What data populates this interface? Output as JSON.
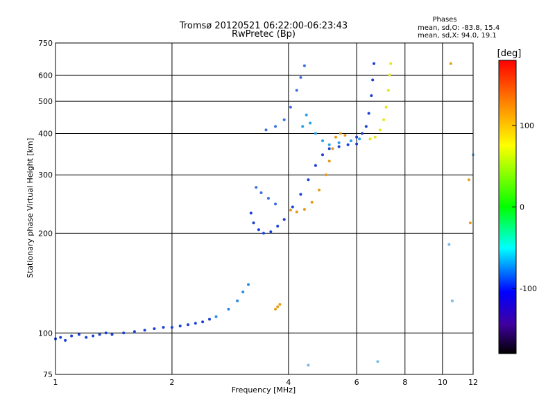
{
  "chart_data": {
    "type": "scatter",
    "title": "Tromsø 20120521 06:22:00-06:23:43",
    "subtitle": "RwPretec (Bp)",
    "xlabel": "Frequency [MHz]",
    "ylabel": "Stationary phase Virtual Height [km]",
    "x_scale": "log",
    "y_scale": "log",
    "xlim": [
      1,
      12
    ],
    "ylim": [
      75,
      750
    ],
    "x_ticks": [
      1,
      2,
      4,
      6,
      8,
      10,
      12
    ],
    "y_ticks": [
      75,
      100,
      200,
      300,
      400,
      500,
      600,
      750
    ],
    "grid": true,
    "phase_info": {
      "title": "Phases",
      "line1": "mean, sd,O: -83.8, 15.4",
      "line2": "mean, sd,X:  94.0, 19.1"
    },
    "colorbar": {
      "label": "[deg]",
      "range": [
        -180,
        180
      ],
      "ticks": [
        100,
        0,
        -100
      ],
      "colors": [
        "#ff0000",
        "#ff8000",
        "#ffff00",
        "#00ff00",
        "#00ffff",
        "#0000ff",
        "#4000a0",
        "#000000"
      ]
    },
    "series": [
      {
        "color": "#1a3fd6",
        "points": [
          [
            1.0,
            96
          ],
          [
            1.03,
            97
          ],
          [
            1.06,
            95
          ],
          [
            1.1,
            98
          ],
          [
            1.15,
            99
          ],
          [
            1.2,
            97
          ],
          [
            1.25,
            98
          ],
          [
            1.3,
            99
          ],
          [
            1.35,
            100
          ],
          [
            1.4,
            99
          ],
          [
            1.5,
            100
          ],
          [
            1.6,
            101
          ],
          [
            1.7,
            102
          ],
          [
            1.8,
            103
          ],
          [
            1.9,
            104
          ],
          [
            2.0,
            104
          ],
          [
            2.1,
            105
          ],
          [
            2.2,
            106
          ],
          [
            2.3,
            107
          ],
          [
            2.4,
            108
          ],
          [
            2.5,
            110
          ]
        ]
      },
      {
        "color": "#2a8ae6",
        "points": [
          [
            2.6,
            112
          ],
          [
            2.8,
            118
          ],
          [
            2.95,
            125
          ],
          [
            3.05,
            133
          ],
          [
            3.15,
            140
          ]
        ]
      },
      {
        "color": "#1a3fd6",
        "points": [
          [
            3.2,
            230
          ],
          [
            3.25,
            215
          ],
          [
            3.35,
            205
          ],
          [
            3.45,
            200
          ],
          [
            3.6,
            202
          ],
          [
            3.75,
            210
          ],
          [
            3.9,
            220
          ],
          [
            4.1,
            240
          ],
          [
            4.3,
            262
          ],
          [
            4.5,
            290
          ],
          [
            4.7,
            320
          ],
          [
            4.9,
            345
          ],
          [
            5.1,
            360
          ],
          [
            5.4,
            365
          ],
          [
            5.7,
            370
          ],
          [
            6.0,
            372
          ]
        ]
      },
      {
        "color": "#3d6fe0",
        "points": [
          [
            3.3,
            275
          ],
          [
            3.4,
            265
          ],
          [
            3.55,
            255
          ],
          [
            3.7,
            245
          ],
          [
            3.5,
            410
          ],
          [
            3.7,
            420
          ],
          [
            3.9,
            440
          ],
          [
            4.05,
            480
          ],
          [
            4.2,
            540
          ],
          [
            4.3,
            590
          ],
          [
            4.4,
            640
          ]
        ]
      },
      {
        "color": "#25a0e6",
        "points": [
          [
            4.35,
            420
          ],
          [
            4.45,
            455
          ],
          [
            4.55,
            430
          ],
          [
            4.7,
            400
          ],
          [
            4.9,
            380
          ],
          [
            5.1,
            370
          ],
          [
            5.4,
            375
          ],
          [
            5.8,
            380
          ],
          [
            6.1,
            385
          ]
        ]
      },
      {
        "color": "#e69a1a",
        "points": [
          [
            4.05,
            235
          ],
          [
            4.2,
            232
          ],
          [
            4.4,
            236
          ],
          [
            4.6,
            248
          ],
          [
            4.8,
            270
          ],
          [
            5.0,
            300
          ],
          [
            5.1,
            330
          ],
          [
            5.2,
            360
          ],
          [
            5.3,
            390
          ],
          [
            5.45,
            400
          ],
          [
            5.6,
            395
          ]
        ]
      },
      {
        "color": "#1a3fd6",
        "points": [
          [
            6.0,
            390
          ],
          [
            6.2,
            400
          ],
          [
            6.35,
            420
          ],
          [
            6.45,
            460
          ],
          [
            6.55,
            520
          ],
          [
            6.6,
            580
          ],
          [
            6.65,
            650
          ]
        ]
      },
      {
        "color": "#e6e61a",
        "points": [
          [
            6.5,
            385
          ],
          [
            6.7,
            390
          ],
          [
            6.9,
            410
          ],
          [
            7.05,
            440
          ],
          [
            7.15,
            480
          ],
          [
            7.25,
            540
          ],
          [
            7.3,
            600
          ],
          [
            7.35,
            650
          ]
        ]
      },
      {
        "color": "#e6a01a",
        "points": [
          [
            3.7,
            118
          ],
          [
            3.75,
            120
          ],
          [
            3.8,
            122
          ],
          [
            10.5,
            650
          ],
          [
            11.7,
            290
          ],
          [
            11.8,
            215
          ]
        ]
      },
      {
        "color": "#7ab8e6",
        "points": [
          [
            4.5,
            80
          ],
          [
            6.8,
            82
          ],
          [
            10.4,
            185
          ],
          [
            10.6,
            125
          ],
          [
            12.0,
            345
          ]
        ]
      }
    ]
  }
}
